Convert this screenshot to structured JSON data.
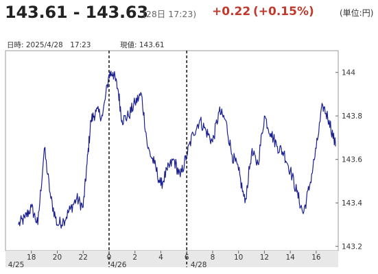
{
  "header": {
    "price_range": "143.61 - 143.63",
    "time": "(28日 17:23)",
    "change_abs": "+0.22",
    "change_pct": "(+0.15%)",
    "unit": "(単位:円)",
    "change_color": "#c0392b"
  },
  "info": {
    "datetime": "日時: 2025/4/28　17:23",
    "current_price": "現値: 143.61"
  },
  "chart_data": {
    "type": "line",
    "series": [
      {
        "color": "#1a1f8f",
        "x": [
          17.0,
          17.5,
          18.0,
          18.5,
          19.0,
          19.5,
          20.0,
          20.5,
          21.0,
          21.5,
          22.0,
          22.3,
          22.6,
          23.0,
          23.5,
          24.0,
          24.3,
          24.7,
          25.0,
          25.5,
          26.0,
          26.5,
          27.0,
          27.5,
          28.0,
          28.5,
          29.0,
          29.5,
          30.0,
          30.5,
          31.0,
          31.5,
          32.0,
          32.5,
          33.0,
          33.5,
          34.0,
          34.5,
          35.0,
          35.5,
          36.0,
          36.5,
          37.0,
          37.5,
          38.0,
          38.5,
          39.0,
          39.5,
          40.0,
          40.5,
          41.0,
          41.5
        ],
        "y": [
          143.3,
          143.33,
          143.38,
          143.3,
          143.65,
          143.42,
          143.3,
          143.32,
          143.37,
          143.42,
          143.38,
          143.58,
          143.78,
          143.82,
          143.8,
          143.99,
          144.0,
          143.92,
          143.78,
          143.8,
          143.86,
          143.9,
          143.65,
          143.58,
          143.48,
          143.55,
          143.6,
          143.52,
          143.62,
          143.72,
          143.78,
          143.73,
          143.68,
          143.82,
          143.78,
          143.62,
          143.55,
          143.4,
          143.63,
          143.58,
          143.8,
          143.72,
          143.66,
          143.63,
          143.55,
          143.45,
          143.35,
          143.48,
          143.65,
          143.85,
          143.78,
          143.66
        ]
      }
    ],
    "yticks": [
      "144",
      "143.8",
      "143.6",
      "143.4",
      "143.2"
    ],
    "ytick_values": [
      144.0,
      143.8,
      143.6,
      143.4,
      143.2
    ],
    "ylim": [
      143.18,
      144.1
    ],
    "xlim": [
      16.0,
      41.7
    ],
    "xtick_values": [
      18,
      20,
      22,
      24,
      26,
      28,
      30,
      32,
      34,
      36,
      38,
      40
    ],
    "xtick_labels": [
      "18",
      "20",
      "22",
      "0",
      "2",
      "4",
      "6",
      "8",
      "10",
      "12",
      "14",
      "16"
    ],
    "date_labels": [
      {
        "x": 16.2,
        "label": "4/25"
      },
      {
        "x": 24.1,
        "label": "4/26"
      },
      {
        "x": 30.3,
        "label": "4/28"
      }
    ],
    "day_dividers": [
      24,
      30
    ],
    "grid": false
  }
}
